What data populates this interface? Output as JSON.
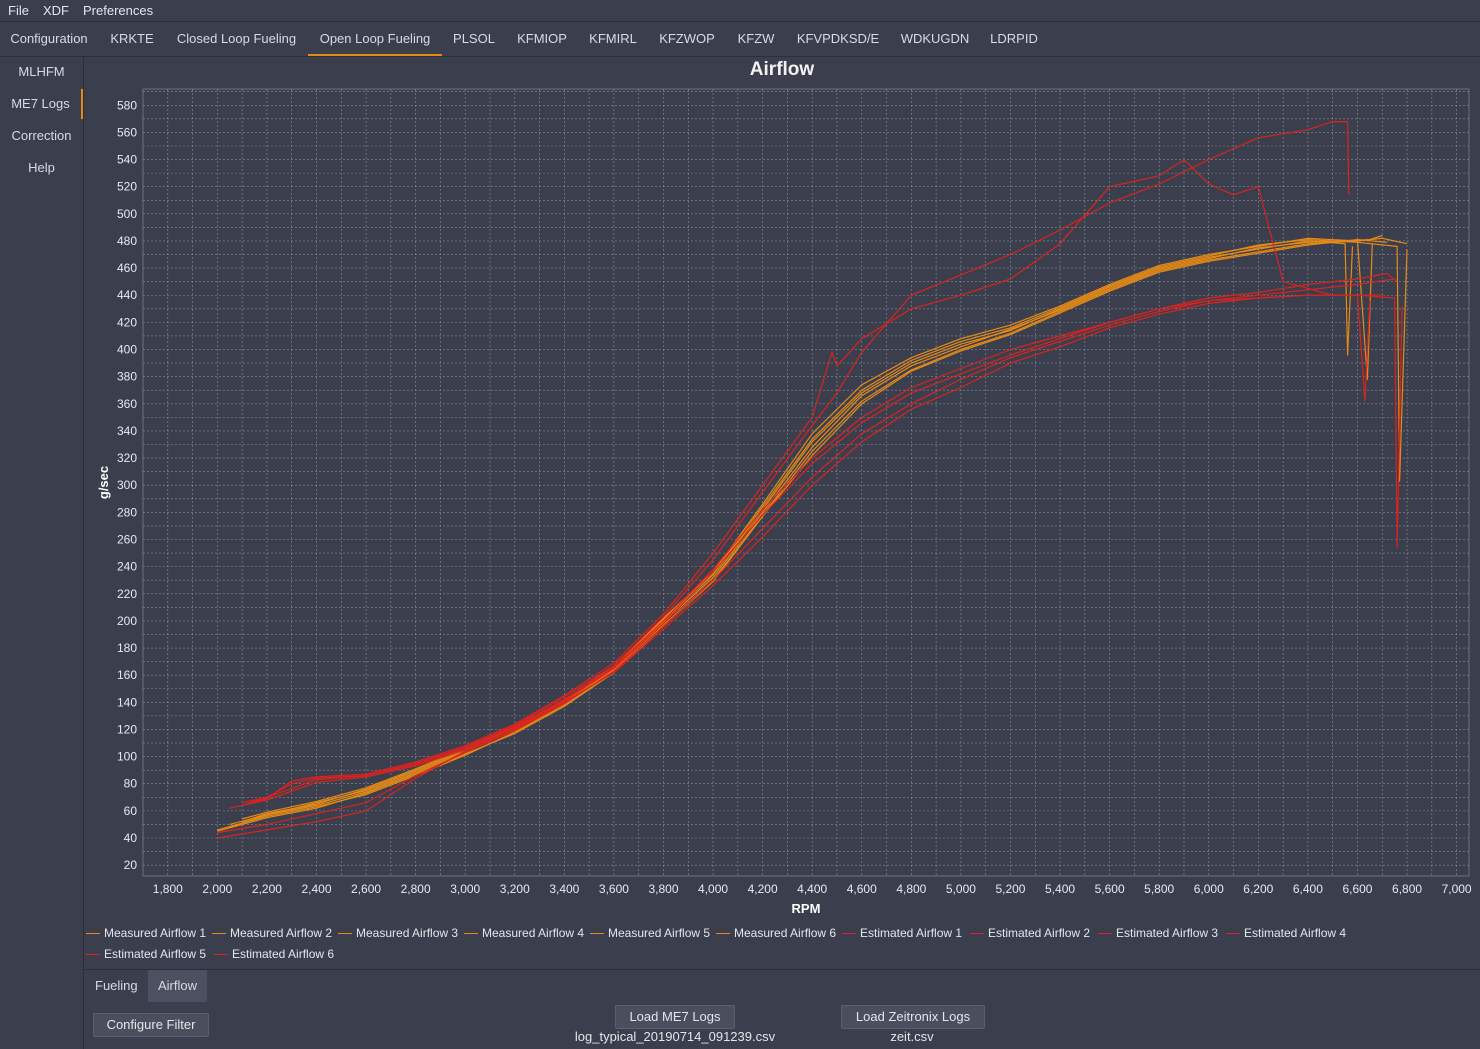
{
  "menu": [
    "File",
    "XDF",
    "Preferences"
  ],
  "tabs": [
    "Configuration",
    "KRKTE",
    "Closed Loop Fueling",
    "Open Loop Fueling",
    "PLSOL",
    "KFMIOP",
    "KFMIRL",
    "KFZWOP",
    "KFZW",
    "KFVPDKSD/E",
    "WDKUGDN",
    "LDRPID"
  ],
  "active_tab": "Open Loop Fueling",
  "sidebar": [
    "MLHFM",
    "ME7 Logs",
    "Correction",
    "Help"
  ],
  "active_sidebar": "ME7 Logs",
  "bottom_tabs": [
    "Fueling",
    "Airflow"
  ],
  "active_bottom_tab": "Airflow",
  "buttons": {
    "configure_filter": "Configure Filter",
    "load_me7": "Load ME7 Logs",
    "load_zeitronix": "Load Zeitronix Logs"
  },
  "files": {
    "me7": "log_typical_20190714_091239.csv",
    "zeitronix": "zeit.csv"
  },
  "colors": {
    "measured": "#e58a17",
    "estimated": "#d9231f",
    "accent": "#e58a17"
  },
  "chart_data": {
    "type": "line",
    "title": "Airflow",
    "xlabel": "RPM",
    "ylabel": "g/sec",
    "xlim": [
      1700,
      7050
    ],
    "ylim": [
      12,
      592
    ],
    "x_ticks": [
      1800,
      2000,
      2200,
      2400,
      2600,
      2800,
      3000,
      3200,
      3400,
      3600,
      3800,
      4000,
      4200,
      4400,
      4600,
      4800,
      5000,
      5200,
      5400,
      5600,
      5800,
      6000,
      6200,
      6400,
      6600,
      6800,
      7000
    ],
    "x_tick_labels": [
      "1,800",
      "2,000",
      "2,200",
      "2,400",
      "2,600",
      "2,800",
      "3,000",
      "3,200",
      "3,400",
      "3,600",
      "3,800",
      "4,000",
      "4,200",
      "4,400",
      "4,600",
      "4,800",
      "5,000",
      "5,200",
      "5,400",
      "5,600",
      "5,800",
      "6,000",
      "6,200",
      "6,400",
      "6,600",
      "6,800",
      "7,000"
    ],
    "y_ticks": [
      20,
      40,
      60,
      80,
      100,
      120,
      140,
      160,
      180,
      200,
      220,
      240,
      260,
      280,
      300,
      320,
      340,
      360,
      380,
      400,
      420,
      440,
      460,
      480,
      500,
      520,
      540,
      560,
      580
    ],
    "grid": true,
    "legend_position": "bottom",
    "series": [
      {
        "name": "Measured Airflow 1",
        "kind": "measured",
        "x": [
          2000,
          2200,
          2400,
          2600,
          2800,
          3000,
          3200,
          3400,
          3600,
          3800,
          4000,
          4200,
          4400,
          4600,
          4800,
          5000,
          5200,
          5400,
          5600,
          5800,
          6000,
          6200,
          6400,
          6600,
          6700,
          6750,
          6800
        ],
        "y": [
          46,
          56,
          63,
          72,
          86,
          101,
          118,
          138,
          163,
          197,
          230,
          278,
          325,
          362,
          385,
          400,
          412,
          428,
          444,
          458,
          466,
          472,
          478,
          480,
          482,
          480,
          478
        ]
      },
      {
        "name": "Measured Airflow 2",
        "kind": "measured",
        "x": [
          2050,
          2200,
          2400,
          2600,
          2800,
          3000,
          3200,
          3400,
          3600,
          3800,
          4000,
          4200,
          4400,
          4600,
          4800,
          5000,
          5200,
          5400,
          5600,
          5800,
          6000,
          6200,
          6400,
          6550,
          6560,
          6580
        ],
        "y": [
          48,
          57,
          64,
          74,
          88,
          103,
          120,
          140,
          165,
          200,
          234,
          282,
          332,
          368,
          390,
          404,
          414,
          430,
          446,
          460,
          468,
          474,
          480,
          478,
          396,
          476
        ]
      },
      {
        "name": "Measured Airflow 3",
        "kind": "measured",
        "x": [
          2100,
          2200,
          2400,
          2600,
          2800,
          3000,
          3200,
          3400,
          3600,
          3800,
          4000,
          4200,
          4400,
          4600,
          4800,
          5000,
          5200,
          5400,
          5600,
          5800,
          6000,
          6200,
          6400,
          6600,
          6640,
          6660
        ],
        "y": [
          52,
          58,
          65,
          76,
          90,
          105,
          121,
          141,
          167,
          202,
          236,
          286,
          338,
          374,
          394,
          408,
          418,
          432,
          448,
          462,
          470,
          476,
          482,
          480,
          378,
          478
        ]
      },
      {
        "name": "Measured Airflow 4",
        "kind": "measured",
        "x": [
          2050,
          2200,
          2400,
          2600,
          2800,
          3000,
          3200,
          3400,
          3600,
          3800,
          4000,
          4200,
          4400,
          4600,
          4800,
          5000,
          5200,
          5400,
          5600,
          5800,
          6000,
          6200,
          6400,
          6650,
          6700
        ],
        "y": [
          50,
          57,
          66,
          75,
          89,
          104,
          119,
          139,
          164,
          199,
          232,
          280,
          328,
          366,
          388,
          402,
          415,
          429,
          445,
          459,
          467,
          475,
          479,
          481,
          484
        ]
      },
      {
        "name": "Measured Airflow 5",
        "kind": "measured",
        "x": [
          2100,
          2200,
          2400,
          2600,
          2800,
          3000,
          3200,
          3400,
          3600,
          3800,
          4000,
          4200,
          4400,
          4600,
          4800,
          5000,
          5200,
          5400,
          5600,
          5800,
          6000,
          6200,
          6400,
          6600,
          6760,
          6770,
          6800
        ],
        "y": [
          54,
          59,
          67,
          77,
          91,
          106,
          122,
          142,
          166,
          201,
          235,
          284,
          334,
          370,
          392,
          406,
          416,
          431,
          447,
          461,
          469,
          477,
          481,
          479,
          476,
          303,
          474
        ]
      },
      {
        "name": "Measured Airflow 6",
        "kind": "measured",
        "x": [
          2000,
          2200,
          2400,
          2600,
          2800,
          3000,
          3200,
          3400,
          3600,
          3800,
          4000,
          4200,
          4400,
          4600,
          4800,
          5000,
          5200,
          5400,
          5600,
          5800,
          6000,
          6200,
          6400,
          6600,
          6720
        ],
        "y": [
          45,
          55,
          62,
          73,
          87,
          102,
          117,
          137,
          162,
          196,
          229,
          277,
          322,
          360,
          384,
          399,
          411,
          427,
          443,
          457,
          465,
          471,
          477,
          481,
          479
        ]
      },
      {
        "name": "Estimated Airflow 1",
        "kind": "estimated",
        "x": [
          2100,
          2200,
          2300,
          2400,
          2600,
          2800,
          3000,
          3200,
          3400,
          3600,
          3800,
          4000,
          4200,
          4400,
          4500,
          4600,
          4800,
          5000,
          5200,
          5400,
          5600,
          5800,
          6000,
          6200,
          6400,
          6500,
          6560,
          6565
        ],
        "y": [
          66,
          70,
          80,
          84,
          86,
          95,
          107,
          123,
          144,
          167,
          203,
          245,
          295,
          344,
          368,
          398,
          440,
          455,
          470,
          488,
          508,
          522,
          540,
          556,
          562,
          568,
          568,
          514
        ]
      },
      {
        "name": "Estimated Airflow 2",
        "kind": "estimated",
        "x": [
          2100,
          2200,
          2300,
          2400,
          2600,
          2800,
          3000,
          3200,
          3400,
          3600,
          3800,
          4000,
          4200,
          4400,
          4480,
          4500,
          4600,
          4800,
          5000,
          5200,
          5400,
          5600,
          5800,
          5900,
          6000,
          6100,
          6200,
          6300,
          6500,
          6700
        ],
        "y": [
          64,
          69,
          82,
          85,
          87,
          96,
          108,
          124,
          145,
          169,
          205,
          250,
          300,
          350,
          398,
          388,
          408,
          430,
          440,
          452,
          478,
          520,
          528,
          540,
          522,
          514,
          520,
          450,
          440,
          440
        ]
      },
      {
        "name": "Estimated Airflow 3",
        "kind": "estimated",
        "x": [
          2000,
          2200,
          2400,
          2600,
          2800,
          3000,
          3200,
          3400,
          3600,
          3800,
          4000,
          4200,
          4400,
          4600,
          4800,
          5000,
          5200,
          5400,
          5600,
          5800,
          6000,
          6200,
          6400,
          6600,
          6750,
          6760,
          6780
        ],
        "y": [
          40,
          46,
          52,
          60,
          84,
          104,
          120,
          140,
          162,
          194,
          226,
          262,
          300,
          332,
          356,
          372,
          390,
          402,
          416,
          426,
          434,
          438,
          440,
          440,
          438,
          254,
          432
        ]
      },
      {
        "name": "Estimated Airflow 4",
        "kind": "estimated",
        "x": [
          2100,
          2200,
          2400,
          2600,
          2800,
          3000,
          3200,
          3400,
          3600,
          3800,
          4000,
          4200,
          4400,
          4600,
          4800,
          5000,
          5200,
          5400,
          5600,
          5800,
          6000,
          6200,
          6400,
          6600,
          6630,
          6650
        ],
        "y": [
          64,
          70,
          83,
          86,
          94,
          106,
          122,
          142,
          166,
          200,
          238,
          282,
          320,
          350,
          372,
          386,
          400,
          410,
          420,
          430,
          436,
          438,
          440,
          440,
          362,
          436
        ]
      },
      {
        "name": "Estimated Airflow 5",
        "kind": "estimated",
        "x": [
          2000,
          2200,
          2400,
          2600,
          2800,
          3000,
          3200,
          3400,
          3600,
          3800,
          4000,
          4200,
          4400,
          4600,
          4800,
          5000,
          5200,
          5400,
          5600,
          5800,
          6000,
          6200,
          6400,
          6600,
          6750
        ],
        "y": [
          44,
          50,
          58,
          66,
          86,
          103,
          119,
          139,
          163,
          196,
          230,
          268,
          306,
          338,
          360,
          378,
          394,
          406,
          418,
          428,
          436,
          440,
          444,
          448,
          452
        ]
      },
      {
        "name": "Estimated Airflow 6",
        "kind": "estimated",
        "x": [
          2050,
          2200,
          2400,
          2600,
          2800,
          3000,
          3200,
          3400,
          3600,
          3800,
          4000,
          4200,
          4400,
          4600,
          4800,
          5000,
          5200,
          5400,
          5600,
          5800,
          6000,
          6200,
          6400,
          6600,
          6720,
          6760
        ],
        "y": [
          62,
          68,
          81,
          85,
          93,
          105,
          121,
          141,
          165,
          198,
          236,
          278,
          316,
          346,
          368,
          382,
          396,
          408,
          420,
          430,
          438,
          442,
          448,
          452,
          456,
          450
        ]
      }
    ]
  }
}
